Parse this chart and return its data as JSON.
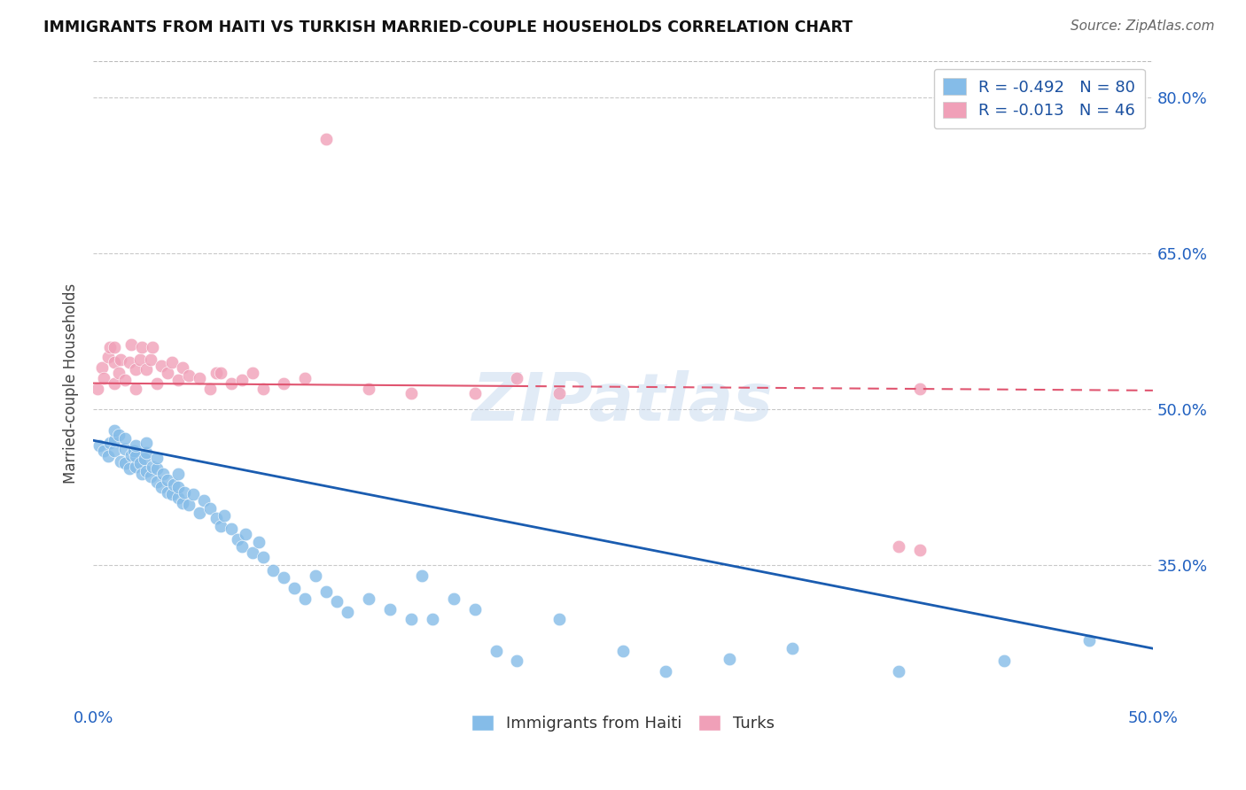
{
  "title": "IMMIGRANTS FROM HAITI VS TURKISH MARRIED-COUPLE HOUSEHOLDS CORRELATION CHART",
  "source": "Source: ZipAtlas.com",
  "ylabel": "Married-couple Households",
  "legend_labels": [
    "Immigrants from Haiti",
    "Turks"
  ],
  "r_haiti": -0.492,
  "n_haiti": 80,
  "r_turks": -0.013,
  "n_turks": 46,
  "xmin": 0.0,
  "xmax": 0.5,
  "ymin": 0.215,
  "ymax": 0.835,
  "yticks": [
    0.35,
    0.5,
    0.65,
    0.8
  ],
  "ytick_labels": [
    "35.0%",
    "50.0%",
    "65.0%",
    "80.0%"
  ],
  "xticks": [
    0.0,
    0.1,
    0.2,
    0.3,
    0.4,
    0.5
  ],
  "xtick_labels": [
    "0.0%",
    "",
    "",
    "",
    "",
    "50.0%"
  ],
  "color_haiti": "#85BCE8",
  "color_turks": "#F0A0B8",
  "line_color_haiti": "#1A5CB0",
  "line_color_turks": "#E05570",
  "watermark": "ZIPatlas",
  "background_color": "#FFFFFF",
  "haiti_x": [
    0.003,
    0.005,
    0.007,
    0.008,
    0.01,
    0.01,
    0.01,
    0.012,
    0.013,
    0.015,
    0.015,
    0.015,
    0.017,
    0.018,
    0.019,
    0.02,
    0.02,
    0.02,
    0.022,
    0.023,
    0.024,
    0.025,
    0.025,
    0.025,
    0.027,
    0.028,
    0.03,
    0.03,
    0.03,
    0.032,
    0.033,
    0.035,
    0.035,
    0.037,
    0.038,
    0.04,
    0.04,
    0.04,
    0.042,
    0.043,
    0.045,
    0.047,
    0.05,
    0.052,
    0.055,
    0.058,
    0.06,
    0.062,
    0.065,
    0.068,
    0.07,
    0.072,
    0.075,
    0.078,
    0.08,
    0.085,
    0.09,
    0.095,
    0.1,
    0.105,
    0.11,
    0.115,
    0.12,
    0.13,
    0.14,
    0.15,
    0.155,
    0.16,
    0.17,
    0.18,
    0.19,
    0.2,
    0.22,
    0.25,
    0.27,
    0.3,
    0.33,
    0.38,
    0.43,
    0.47
  ],
  "haiti_y": [
    0.465,
    0.46,
    0.455,
    0.468,
    0.46,
    0.47,
    0.48,
    0.475,
    0.45,
    0.448,
    0.462,
    0.472,
    0.443,
    0.456,
    0.46,
    0.445,
    0.455,
    0.465,
    0.448,
    0.438,
    0.452,
    0.44,
    0.458,
    0.468,
    0.435,
    0.445,
    0.43,
    0.443,
    0.453,
    0.425,
    0.438,
    0.42,
    0.432,
    0.418,
    0.428,
    0.415,
    0.425,
    0.438,
    0.41,
    0.42,
    0.408,
    0.418,
    0.4,
    0.412,
    0.405,
    0.395,
    0.388,
    0.398,
    0.385,
    0.375,
    0.368,
    0.38,
    0.362,
    0.372,
    0.358,
    0.345,
    0.338,
    0.328,
    0.318,
    0.34,
    0.325,
    0.315,
    0.305,
    0.318,
    0.308,
    0.298,
    0.34,
    0.298,
    0.318,
    0.308,
    0.268,
    0.258,
    0.298,
    0.268,
    0.248,
    0.26,
    0.27,
    0.248,
    0.258,
    0.278
  ],
  "turks_x": [
    0.002,
    0.004,
    0.005,
    0.007,
    0.008,
    0.01,
    0.01,
    0.01,
    0.012,
    0.013,
    0.015,
    0.017,
    0.018,
    0.02,
    0.02,
    0.022,
    0.023,
    0.025,
    0.027,
    0.028,
    0.03,
    0.032,
    0.035,
    0.037,
    0.04,
    0.042,
    0.045,
    0.05,
    0.055,
    0.058,
    0.06,
    0.065,
    0.07,
    0.075,
    0.08,
    0.09,
    0.1,
    0.11,
    0.13,
    0.15,
    0.18,
    0.2,
    0.22,
    0.38,
    0.39,
    0.39
  ],
  "turks_y": [
    0.52,
    0.54,
    0.53,
    0.55,
    0.56,
    0.525,
    0.545,
    0.56,
    0.535,
    0.548,
    0.528,
    0.545,
    0.562,
    0.52,
    0.538,
    0.548,
    0.56,
    0.538,
    0.548,
    0.56,
    0.525,
    0.542,
    0.535,
    0.545,
    0.528,
    0.54,
    0.532,
    0.53,
    0.52,
    0.535,
    0.535,
    0.525,
    0.528,
    0.535,
    0.52,
    0.525,
    0.53,
    0.76,
    0.52,
    0.515,
    0.515,
    0.53,
    0.515,
    0.368,
    0.365,
    0.52
  ],
  "turks_line_solid_xmax": 0.2,
  "haiti_line_y_at_0": 0.47,
  "haiti_line_y_at_50": 0.27,
  "turks_line_y_at_0": 0.525,
  "turks_line_y_at_50": 0.518
}
